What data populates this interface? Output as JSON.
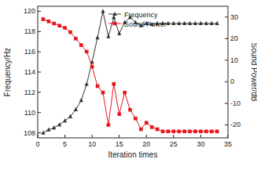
{
  "chart_data": {
    "type": "line",
    "x_label": "Iteration times",
    "y_label": "Frequency/Hz",
    "y2_label": "Sound Power/dB",
    "x": [
      1,
      2,
      3,
      4,
      5,
      6,
      7,
      8,
      9,
      10,
      11,
      12,
      13,
      14,
      15,
      16,
      17,
      18,
      19,
      20,
      21,
      22,
      23,
      24,
      25,
      26,
      27,
      28,
      29,
      30,
      31,
      32,
      33
    ],
    "series": [
      {
        "name": "Frequency",
        "color": "#333333",
        "marker": "triangle",
        "line_style": "solid",
        "values": [
          108.0,
          108.3,
          108.5,
          108.8,
          109.2,
          109.6,
          110.3,
          111.2,
          112.8,
          115.0,
          117.4,
          120.0,
          117.5,
          119.4,
          117.8,
          118.9,
          119.4,
          118.9,
          118.6,
          118.8,
          118.7,
          118.8,
          118.8,
          118.8,
          118.8,
          118.8,
          118.8,
          118.8,
          118.8,
          118.8,
          118.8,
          118.8,
          118.8
        ]
      },
      {
        "name": "Sound Power",
        "color": "#e8151d",
        "marker": "square",
        "line_style": "solid",
        "axis": "y2",
        "values": [
          29,
          28,
          27,
          26,
          25,
          23,
          20,
          17,
          14,
          7,
          -2,
          -5,
          -20,
          -1,
          -15,
          -5,
          -13,
          -17,
          -22,
          -19,
          -21,
          -22,
          -23,
          -23,
          -23,
          -23,
          -23,
          -23,
          -23,
          -23,
          -23,
          -23,
          -23
        ]
      }
    ],
    "xlim": [
      0,
      35
    ],
    "xticks": [
      0,
      5,
      10,
      15,
      20,
      25,
      30,
      35
    ],
    "ylim": [
      107.5,
      120.5
    ],
    "yticks": [
      108,
      110,
      112,
      114,
      116,
      118,
      120
    ],
    "y2lim": [
      -26,
      35
    ],
    "y2ticks": [
      -20,
      -10,
      0,
      10,
      20,
      30
    ],
    "legend": "top",
    "grid": false
  }
}
